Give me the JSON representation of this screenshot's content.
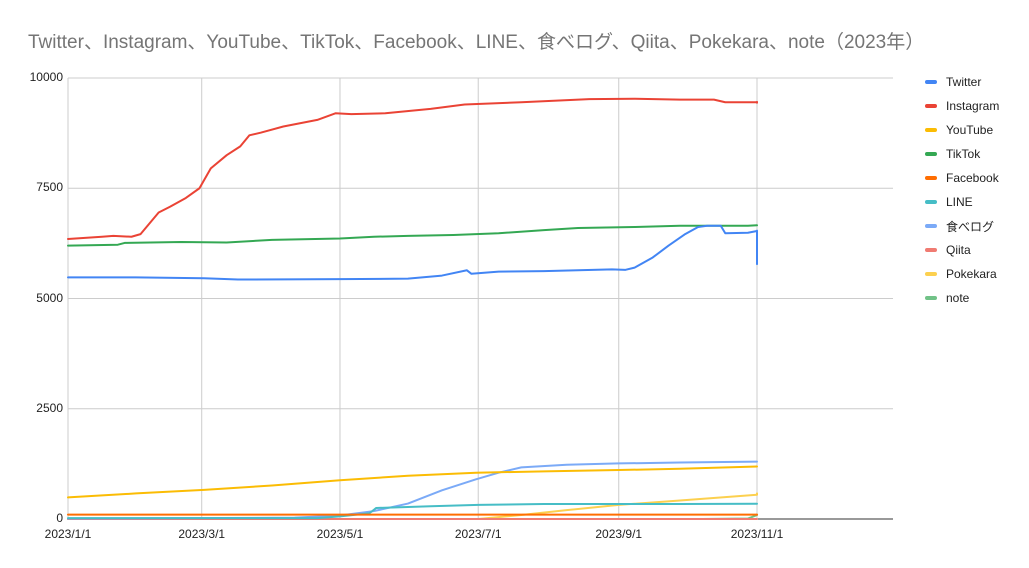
{
  "chart_data": {
    "type": "line",
    "title": "Twitter、Instagram、YouTube、TikTok、Facebook、LINE、食べログ、Qiita、Pokekara、note（2023年）",
    "xlabel": "",
    "ylabel": "",
    "ylim": [
      0,
      10000
    ],
    "yticks": [
      "0",
      "2500",
      "5000",
      "7500",
      "10000"
    ],
    "xticks": [
      "2023/1/1",
      "2023/3/1",
      "2023/5/1",
      "2023/7/1",
      "2023/9/1",
      "2023/11/1"
    ],
    "xtick_days": [
      0,
      59,
      120,
      181,
      243,
      304
    ],
    "x_range_days": [
      0,
      364
    ],
    "grid": true,
    "legend_position": "right",
    "x_unit": "days since 2023/1/1",
    "series": [
      {
        "name": "Twitter",
        "color": "#4285f4",
        "points": [
          [
            0,
            5480
          ],
          [
            30,
            5480
          ],
          [
            60,
            5460
          ],
          [
            75,
            5430
          ],
          [
            120,
            5440
          ],
          [
            150,
            5450
          ],
          [
            165,
            5520
          ],
          [
            176,
            5640
          ],
          [
            178,
            5560
          ],
          [
            190,
            5610
          ],
          [
            210,
            5620
          ],
          [
            240,
            5660
          ],
          [
            246,
            5650
          ],
          [
            250,
            5700
          ],
          [
            258,
            5930
          ],
          [
            265,
            6200
          ],
          [
            272,
            6450
          ],
          [
            278,
            6620
          ],
          [
            282,
            6650
          ],
          [
            288,
            6650
          ],
          [
            290,
            6480
          ],
          [
            300,
            6490
          ],
          [
            310,
            6530
          ],
          [
            318,
            6540
          ],
          [
            320,
            6540
          ],
          [
            321,
            5780
          ],
          [
            330,
            5780
          ]
        ]
      },
      {
        "name": "Instagram",
        "color": "#ea4335",
        "points": [
          [
            0,
            6350
          ],
          [
            15,
            6400
          ],
          [
            20,
            6420
          ],
          [
            28,
            6400
          ],
          [
            32,
            6460
          ],
          [
            40,
            6950
          ],
          [
            45,
            7080
          ],
          [
            52,
            7280
          ],
          [
            58,
            7500
          ],
          [
            63,
            7950
          ],
          [
            70,
            8250
          ],
          [
            76,
            8450
          ],
          [
            80,
            8700
          ],
          [
            85,
            8760
          ],
          [
            95,
            8900
          ],
          [
            110,
            9050
          ],
          [
            118,
            9200
          ],
          [
            125,
            9180
          ],
          [
            140,
            9200
          ],
          [
            160,
            9300
          ],
          [
            175,
            9400
          ],
          [
            200,
            9450
          ],
          [
            230,
            9520
          ],
          [
            250,
            9530
          ],
          [
            270,
            9510
          ],
          [
            285,
            9510
          ],
          [
            290,
            9450
          ],
          [
            305,
            9450
          ],
          [
            315,
            9440
          ],
          [
            330,
            9460
          ]
        ]
      },
      {
        "name": "YouTube",
        "color": "#fbbc04",
        "points": [
          [
            0,
            490
          ],
          [
            30,
            580
          ],
          [
            60,
            660
          ],
          [
            90,
            760
          ],
          [
            120,
            880
          ],
          [
            150,
            980
          ],
          [
            180,
            1050
          ],
          [
            210,
            1080
          ],
          [
            243,
            1110
          ],
          [
            270,
            1140
          ],
          [
            304,
            1190
          ],
          [
            330,
            1190
          ]
        ]
      },
      {
        "name": "TikTok",
        "color": "#34a853",
        "points": [
          [
            0,
            6200
          ],
          [
            22,
            6220
          ],
          [
            25,
            6260
          ],
          [
            50,
            6280
          ],
          [
            70,
            6270
          ],
          [
            90,
            6330
          ],
          [
            120,
            6360
          ],
          [
            135,
            6400
          ],
          [
            150,
            6420
          ],
          [
            170,
            6440
          ],
          [
            190,
            6480
          ],
          [
            210,
            6550
          ],
          [
            225,
            6600
          ],
          [
            250,
            6620
          ],
          [
            270,
            6650
          ],
          [
            300,
            6650
          ],
          [
            330,
            6660
          ]
        ]
      },
      {
        "name": "Facebook",
        "color": "#ff6d01",
        "points": [
          [
            0,
            100
          ],
          [
            100,
            100
          ],
          [
            200,
            100
          ],
          [
            304,
            100
          ],
          [
            330,
            100
          ]
        ]
      },
      {
        "name": "LINE",
        "color": "#46bdc6",
        "points": [
          [
            0,
            20
          ],
          [
            110,
            20
          ],
          [
            120,
            60
          ],
          [
            133,
            130
          ],
          [
            136,
            250
          ],
          [
            160,
            290
          ],
          [
            181,
            320
          ],
          [
            210,
            340
          ],
          [
            240,
            340
          ],
          [
            270,
            340
          ],
          [
            304,
            345
          ],
          [
            330,
            345
          ]
        ]
      },
      {
        "name": "食べログ",
        "color": "#7baaf7",
        "points": [
          [
            0,
            10
          ],
          [
            100,
            30
          ],
          [
            120,
            80
          ],
          [
            135,
            180
          ],
          [
            150,
            350
          ],
          [
            165,
            650
          ],
          [
            180,
            900
          ],
          [
            190,
            1050
          ],
          [
            200,
            1170
          ],
          [
            220,
            1230
          ],
          [
            243,
            1260
          ],
          [
            270,
            1280
          ],
          [
            304,
            1300
          ],
          [
            330,
            1300
          ]
        ]
      },
      {
        "name": "Qiita",
        "color": "#f07b72",
        "points": [
          [
            0,
            0
          ],
          [
            330,
            0
          ]
        ]
      },
      {
        "name": "Pokekara",
        "color": "#fcd04f",
        "points": [
          [
            181,
            0
          ],
          [
            200,
            90
          ],
          [
            220,
            200
          ],
          [
            243,
            320
          ],
          [
            270,
            420
          ],
          [
            304,
            550
          ],
          [
            330,
            580
          ]
        ]
      },
      {
        "name": "note",
        "color": "#71c287",
        "points": [
          [
            0,
            0
          ],
          [
            280,
            0
          ],
          [
            300,
            10
          ],
          [
            304,
            90
          ],
          [
            330,
            100
          ]
        ]
      }
    ]
  },
  "legend": {
    "items": [
      {
        "label": "Twitter",
        "color": "#4285f4"
      },
      {
        "label": "Instagram",
        "color": "#ea4335"
      },
      {
        "label": "YouTube",
        "color": "#fbbc04"
      },
      {
        "label": "TikTok",
        "color": "#34a853"
      },
      {
        "label": "Facebook",
        "color": "#ff6d01"
      },
      {
        "label": "LINE",
        "color": "#46bdc6"
      },
      {
        "label": "食べログ",
        "color": "#7baaf7"
      },
      {
        "label": "Qiita",
        "color": "#f07b72"
      },
      {
        "label": "Pokekara",
        "color": "#fcd04f"
      },
      {
        "label": "note",
        "color": "#71c287"
      }
    ]
  }
}
